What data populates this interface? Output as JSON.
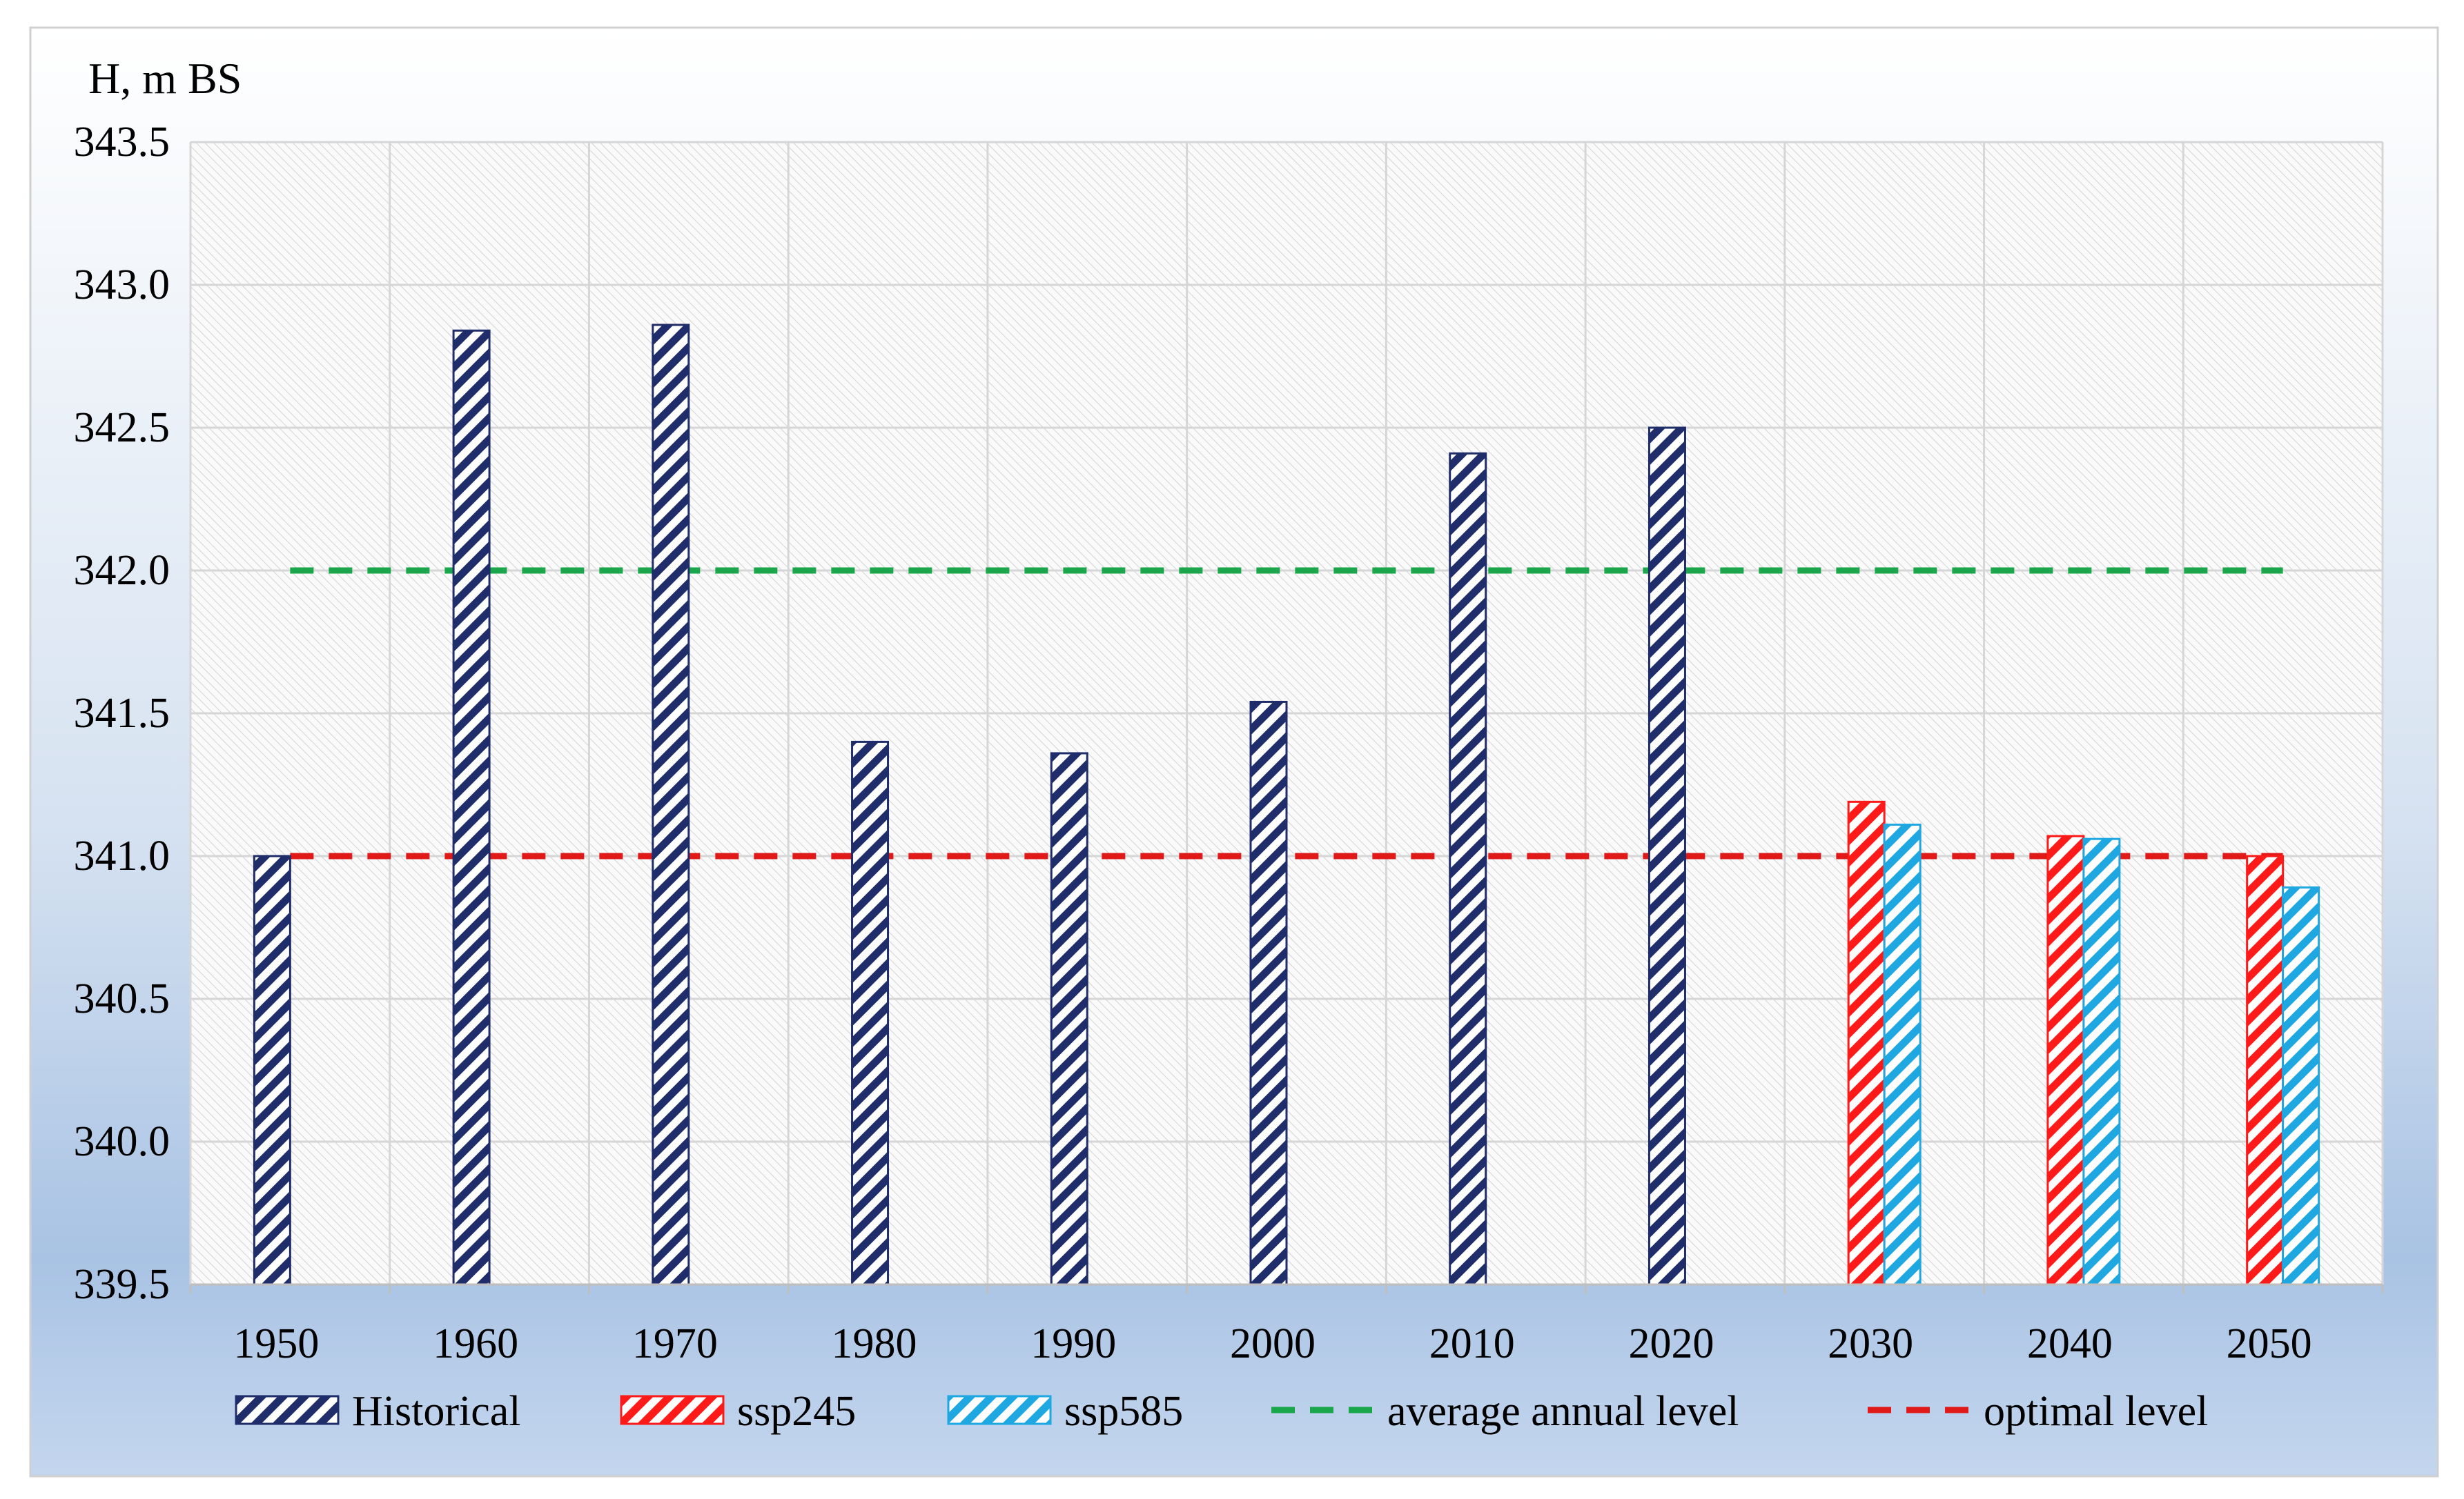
{
  "chart_data": {
    "type": "bar",
    "ylabel": "H, m BS",
    "ylim": [
      339.5,
      343.5
    ],
    "yticks": [
      "339.5",
      "340.0",
      "340.5",
      "341.0",
      "341.5",
      "342.0",
      "342.5",
      "343.0",
      "343.5"
    ],
    "categories": [
      "1950",
      "1960",
      "1970",
      "1980",
      "1990",
      "2000",
      "2010",
      "2020",
      "2030",
      "2040",
      "2050"
    ],
    "series": [
      {
        "name": "Historical",
        "color": "#1f2d6b",
        "values": [
          341.0,
          342.84,
          342.86,
          341.4,
          341.36,
          341.54,
          342.41,
          342.5,
          null,
          null,
          null
        ]
      },
      {
        "name": "ssp245",
        "color": "#ff1a1a",
        "values": [
          null,
          null,
          null,
          null,
          null,
          null,
          null,
          null,
          341.19,
          341.07,
          341.0
        ]
      },
      {
        "name": "ssp585",
        "color": "#1ea7e1",
        "values": [
          null,
          null,
          null,
          null,
          null,
          null,
          null,
          null,
          341.11,
          341.06,
          340.89
        ]
      }
    ],
    "reference_lines": [
      {
        "name": "average annual level",
        "value": 342.0,
        "color": "#1aa64a"
      },
      {
        "name": "optimal level",
        "value": 341.0,
        "color": "#e01919"
      }
    ],
    "grid": true,
    "legend_position": "bottom"
  }
}
